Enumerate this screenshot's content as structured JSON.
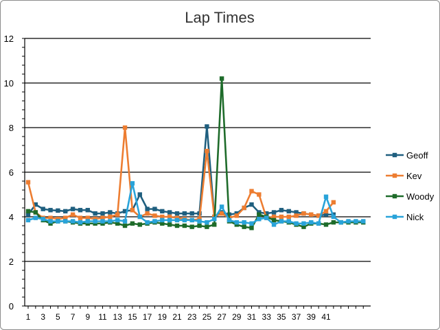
{
  "chart_data": {
    "type": "line",
    "title": "Lap Times",
    "xlabel": "",
    "ylabel": "",
    "ylim": [
      0,
      12
    ],
    "yticks": [
      0,
      2,
      4,
      6,
      8,
      10,
      12
    ],
    "x": [
      1,
      2,
      3,
      4,
      5,
      6,
      7,
      8,
      9,
      10,
      11,
      12,
      13,
      14,
      15,
      16,
      17,
      18,
      19,
      20,
      21,
      22,
      23,
      24,
      25,
      26,
      27,
      28,
      29,
      30,
      31,
      32,
      33,
      34,
      35,
      36,
      37,
      38,
      39,
      40,
      41,
      42,
      43,
      44,
      45,
      46
    ],
    "xticks": [
      1,
      3,
      5,
      7,
      9,
      11,
      13,
      15,
      17,
      19,
      21,
      23,
      25,
      27,
      29,
      31,
      33,
      35,
      37,
      39,
      41
    ],
    "grid": true,
    "legend": "right",
    "series": [
      {
        "name": "Geoff",
        "color": "#1f5f7f",
        "values": [
          4.1,
          4.55,
          4.35,
          4.3,
          4.28,
          4.25,
          4.35,
          4.3,
          4.3,
          4.15,
          4.15,
          4.2,
          4.15,
          4.25,
          4.3,
          5.0,
          4.35,
          4.35,
          4.25,
          4.2,
          4.15,
          4.15,
          4.15,
          4.15,
          8.05,
          4.0,
          4.2,
          4.1,
          4.15,
          4.4,
          4.55,
          4.2,
          4.15,
          4.2,
          4.3,
          4.25,
          4.2,
          4.15,
          4.1,
          4.05,
          4.1,
          4.1,
          null,
          null,
          null,
          null
        ]
      },
      {
        "name": "Kev",
        "color": "#ed7d31",
        "values": [
          5.55,
          4.2,
          3.95,
          3.95,
          3.9,
          3.95,
          4.1,
          3.95,
          3.95,
          3.9,
          3.95,
          4.0,
          4.1,
          8.0,
          4.3,
          4.0,
          4.15,
          4.05,
          4.0,
          4.0,
          3.95,
          3.9,
          3.85,
          3.9,
          6.95,
          4.0,
          4.15,
          3.95,
          4.05,
          4.4,
          5.15,
          5.0,
          3.95,
          4.0,
          4.0,
          4.0,
          4.05,
          4.15,
          4.1,
          4.05,
          4.25,
          4.65,
          null,
          null,
          null,
          null
        ]
      },
      {
        "name": "Woody",
        "color": "#1e6b2a",
        "values": [
          4.25,
          4.2,
          3.85,
          3.7,
          3.8,
          3.8,
          3.75,
          3.7,
          3.7,
          3.7,
          3.7,
          3.75,
          3.7,
          3.6,
          3.7,
          3.65,
          3.7,
          3.75,
          3.7,
          3.65,
          3.6,
          3.6,
          3.55,
          3.6,
          3.55,
          3.65,
          10.2,
          3.8,
          3.65,
          3.55,
          3.5,
          4.1,
          4.0,
          3.85,
          3.8,
          3.75,
          3.65,
          3.55,
          3.7,
          3.7,
          3.65,
          3.75,
          3.75,
          3.75,
          3.75,
          3.75
        ]
      },
      {
        "name": "Nick",
        "color": "#29a3d9",
        "values": [
          3.85,
          3.95,
          3.9,
          3.8,
          3.8,
          3.8,
          3.8,
          3.75,
          3.8,
          3.8,
          3.8,
          3.8,
          3.85,
          3.8,
          5.5,
          4.0,
          3.75,
          3.8,
          3.85,
          3.85,
          3.85,
          3.85,
          3.85,
          3.8,
          3.75,
          3.9,
          4.45,
          3.85,
          3.75,
          3.75,
          3.7,
          3.9,
          3.95,
          3.65,
          3.8,
          3.8,
          3.7,
          3.7,
          3.75,
          3.7,
          4.9,
          4.0,
          3.75,
          3.8,
          3.8,
          3.8
        ]
      }
    ]
  }
}
